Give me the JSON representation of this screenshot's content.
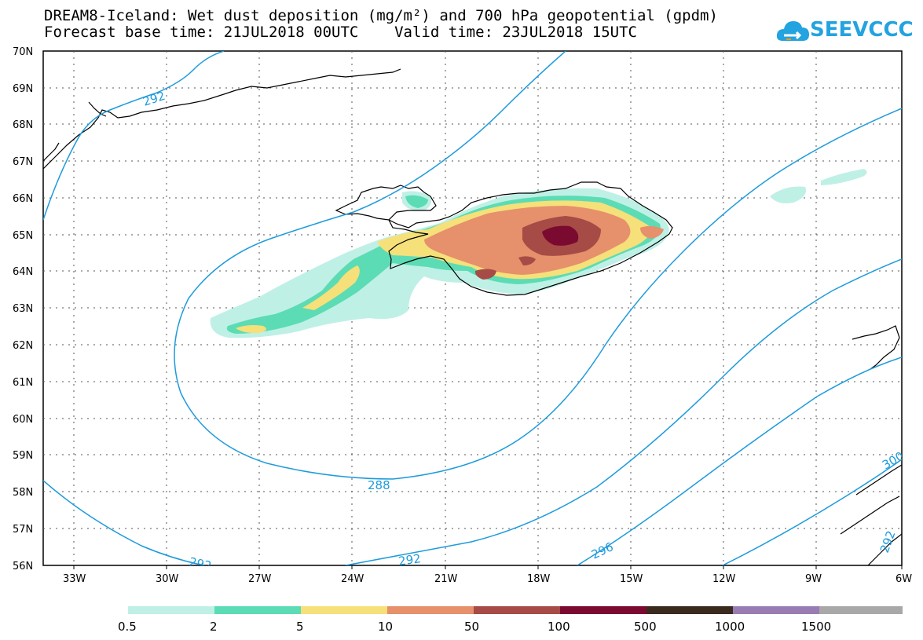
{
  "title": {
    "line1": "DREAM8-Iceland: Wet dust deposition (mg/m²) and 700 hPa geopotential (gpdm)",
    "line2": "Forecast base time: 21JUL2018 00UTC    Valid time: 23JUL2018 15UTC"
  },
  "logo": {
    "text": "SEEVCCC",
    "color": "#23a3e0"
  },
  "map": {
    "lon_ticks": [
      "33W",
      "30W",
      "27W",
      "24W",
      "21W",
      "18W",
      "15W",
      "12W",
      "9W",
      "6W"
    ],
    "lat_ticks": [
      "70N",
      "69N",
      "68N",
      "67N",
      "66N",
      "65N",
      "64N",
      "63N",
      "62N",
      "61N",
      "60N",
      "59N",
      "58N",
      "57N",
      "56N"
    ],
    "contour_labels": [
      "292",
      "288",
      "292",
      "292",
      "296",
      "300",
      "292"
    ],
    "contour_color": "#1e9bdc"
  },
  "colorbar": {
    "labels": [
      "0.5",
      "2",
      "5",
      "10",
      "50",
      "100",
      "500",
      "1000",
      "1500"
    ],
    "colors": [
      "#bff0e6",
      "#5cdcb4",
      "#f5e07a",
      "#e6906c",
      "#a64b45",
      "#7a0a30",
      "#3a2a1e",
      "#9a7cb4",
      "#a8a8a8"
    ]
  }
}
